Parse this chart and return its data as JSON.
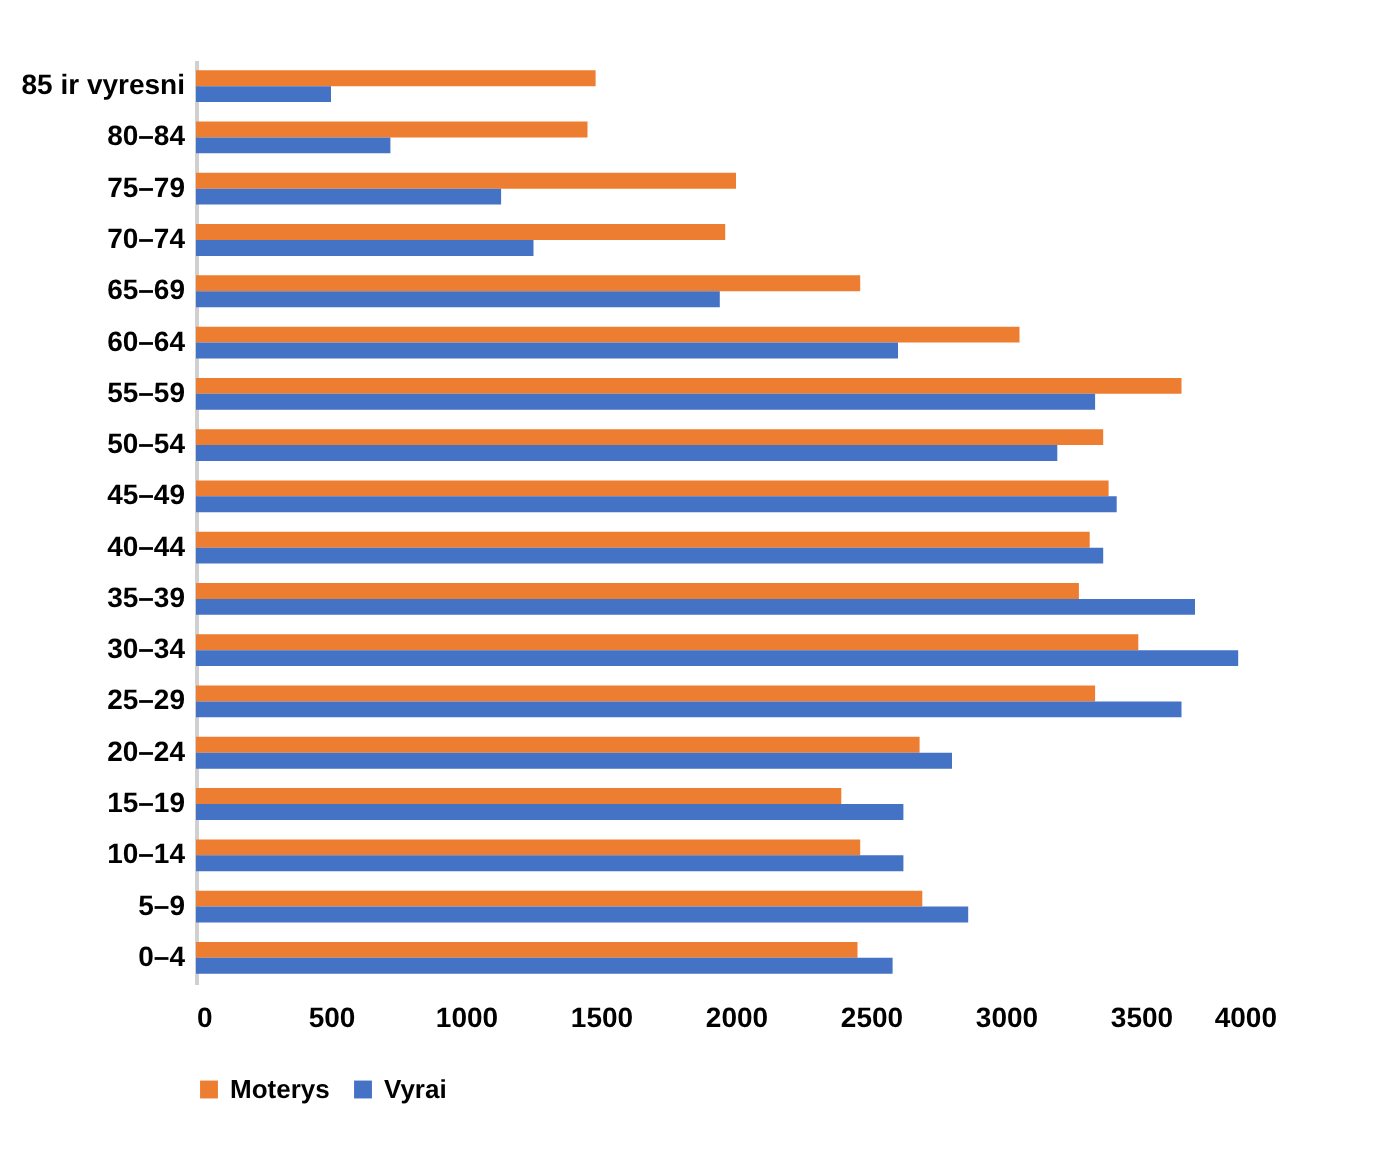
{
  "chart_data": {
    "type": "bar",
    "orientation": "horizontal",
    "categories": [
      "85 ir vyresni",
      "80–84",
      "75–79",
      "70–74",
      "65–69",
      "60–64",
      "55–59",
      "50–54",
      "45–49",
      "40–44",
      "35–39",
      "30–34",
      "25–29",
      "20–24",
      "15–19",
      "10–14",
      "5–9",
      "0–4"
    ],
    "series": [
      {
        "name": "Moterys",
        "color": "#ed7d31",
        "values": [
          1480,
          1450,
          2000,
          1960,
          2460,
          3050,
          3650,
          3360,
          3380,
          3310,
          3270,
          3490,
          3330,
          2680,
          2390,
          2460,
          2690,
          2450
        ]
      },
      {
        "name": "Vyrai",
        "color": "#4472c4",
        "values": [
          500,
          720,
          1130,
          1250,
          1940,
          2600,
          3330,
          3190,
          3410,
          3360,
          3700,
          3860,
          3650,
          2800,
          2620,
          2620,
          2860,
          2580
        ]
      }
    ],
    "xlim": [
      0,
      4000
    ],
    "xticks": [
      0,
      500,
      1000,
      1500,
      2000,
      2500,
      3000,
      3500,
      4000
    ],
    "grid": false,
    "legend": "bottom"
  }
}
